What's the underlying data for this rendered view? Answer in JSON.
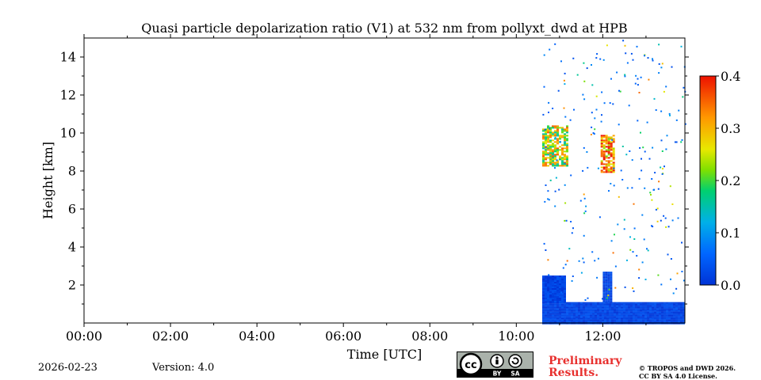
{
  "chart_data": {
    "type": "heatmap",
    "title": "Quasi particle depolarization ratio (V1) at 532 nm from pollyxt_dwd at HPB",
    "xlabel": "Time [UTC]",
    "ylabel": "Height [km]",
    "xlim_hours": [
      0,
      13.9
    ],
    "ylim_km": [
      0,
      15
    ],
    "x_ticks": [
      {
        "hour": 0,
        "label": "00:00"
      },
      {
        "hour": 2,
        "label": "02:00"
      },
      {
        "hour": 4,
        "label": "04:00"
      },
      {
        "hour": 6,
        "label": "06:00"
      },
      {
        "hour": 8,
        "label": "08:00"
      },
      {
        "hour": 10,
        "label": "10:00"
      },
      {
        "hour": 12,
        "label": "12:00"
      }
    ],
    "y_ticks": [
      {
        "km": 2,
        "label": "2"
      },
      {
        "km": 4,
        "label": "4"
      },
      {
        "km": 6,
        "label": "6"
      },
      {
        "km": 8,
        "label": "8"
      },
      {
        "km": 10,
        "label": "10"
      },
      {
        "km": 12,
        "label": "12"
      },
      {
        "km": 14,
        "label": "14"
      }
    ],
    "colorbar": {
      "min": 0.0,
      "max": 0.4,
      "ticks": [
        {
          "value": 0.0,
          "label": "0.0"
        },
        {
          "value": 0.1,
          "label": "0.1"
        },
        {
          "value": 0.2,
          "label": "0.2"
        },
        {
          "value": 0.3,
          "label": "0.3"
        },
        {
          "value": 0.4,
          "label": "0.4"
        }
      ],
      "colormap": "jet"
    },
    "data_start_hour": 10.6,
    "features": [
      {
        "name": "boundary layer",
        "t0": 10.6,
        "t1": 13.9,
        "h0": 0.0,
        "h1": 1.1,
        "value": 0.02
      },
      {
        "name": "aerosol plume 1",
        "t0": 10.6,
        "t1": 11.1,
        "h0": 1.1,
        "h1": 2.5,
        "value": 0.02
      },
      {
        "name": "aerosol plume 2",
        "t0": 12.0,
        "t1": 12.2,
        "h0": 1.1,
        "h1": 2.7,
        "value": 0.02
      },
      {
        "name": "cirrus cloud 1",
        "t0": 10.6,
        "t1": 11.2,
        "h0": 8.3,
        "h1": 10.4,
        "value": 0.25
      },
      {
        "name": "cirrus cloud 2",
        "t0": 11.95,
        "t1": 12.25,
        "h0": 7.9,
        "h1": 9.9,
        "value": 0.32
      }
    ]
  },
  "footer": {
    "date": "2026-02-23",
    "version": "Version: 4.0",
    "preliminary_line1": "Preliminary",
    "preliminary_line2": "Results.",
    "copyright_line1": "© TROPOS and DWD 2026.",
    "copyright_line2": "CC BY SA 4.0 License.",
    "license_badge": {
      "cc": "cc",
      "by": "BY",
      "sa": "SA"
    }
  }
}
